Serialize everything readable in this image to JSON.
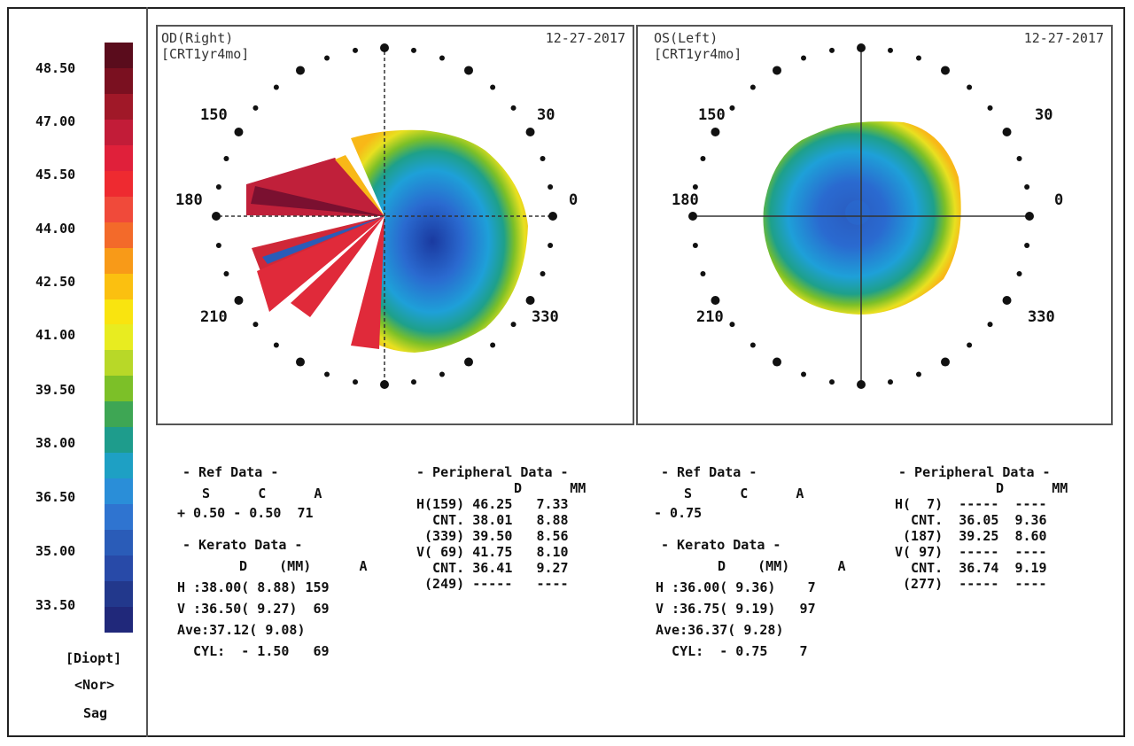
{
  "color_scale": {
    "ticks": [
      "48.50",
      "47.00",
      "45.50",
      "44.00",
      "42.50",
      "41.00",
      "39.50",
      "38.00",
      "36.50",
      "35.00",
      "33.50"
    ],
    "colors": [
      "#5a0c1c",
      "#7a1020",
      "#a01828",
      "#c21c38",
      "#e0203a",
      "#ee2a30",
      "#f04a3a",
      "#f36a2a",
      "#f89a18",
      "#fbc010",
      "#f9e40f",
      "#e8ec20",
      "#b8d828",
      "#7cc028",
      "#3ea654",
      "#1e9c8c",
      "#1ea0c4",
      "#2a8ed8",
      "#2f74d0",
      "#2a5cb8",
      "#284aa8",
      "#22388c",
      "#20287a"
    ],
    "unit": "[Diopt]",
    "mode": "<Nor>",
    "type": "Sag"
  },
  "right_panel": {
    "eye": "OD(Right)",
    "date": "12-27-2017",
    "label": "[CRT1yr4mo]"
  },
  "left_panel": {
    "eye": "OS(Left)",
    "date": "12-27-2017",
    "label": "[CRT1yr4mo]"
  },
  "angles": {
    "a150": "150",
    "a30": "30",
    "a180": "180",
    "a0": "0",
    "a210": "210",
    "a330": "330"
  },
  "od": {
    "ref_title": "- Ref Data -",
    "ref_header": "S      C      A",
    "ref_values": "+ 0.50 - 0.50  71",
    "kerato_title": "- Kerato Data -",
    "kerato_header": "D    (MM)      A",
    "kerato_rows": [
      "H :38.00( 8.88) 159",
      "V :36.50( 9.27)  69",
      "Ave:37.12( 9.08)",
      "  CYL:  - 1.50   69"
    ],
    "peripheral_title": "- Peripheral Data -",
    "peripheral_header": "D      MM",
    "peripheral_rows": [
      "H(159) 46.25   7.33",
      "  CNT. 38.01   8.88",
      " (339) 39.50   8.56",
      "V( 69) 41.75   8.10",
      "  CNT. 36.41   9.27",
      " (249) -----   ----"
    ]
  },
  "os": {
    "ref_title": "- Ref Data -",
    "ref_header": "S      C      A",
    "ref_values": "- 0.75",
    "kerato_title": "- Kerato Data -",
    "kerato_header": "D    (MM)      A",
    "kerato_rows": [
      "H :36.00( 9.36)    7",
      "V :36.75( 9.19)   97",
      "Ave:36.37( 9.28)",
      "  CYL:  - 0.75    7"
    ],
    "peripheral_title": "- Peripheral Data -",
    "peripheral_header": "D      MM",
    "peripheral_rows": [
      "H(  7)  -----  ----",
      "  CNT.  36.05  9.36",
      " (187)  39.25  8.60",
      "V( 97)  -----  ----",
      "  CNT.  36.74  9.19",
      " (277)  -----  ----"
    ]
  }
}
